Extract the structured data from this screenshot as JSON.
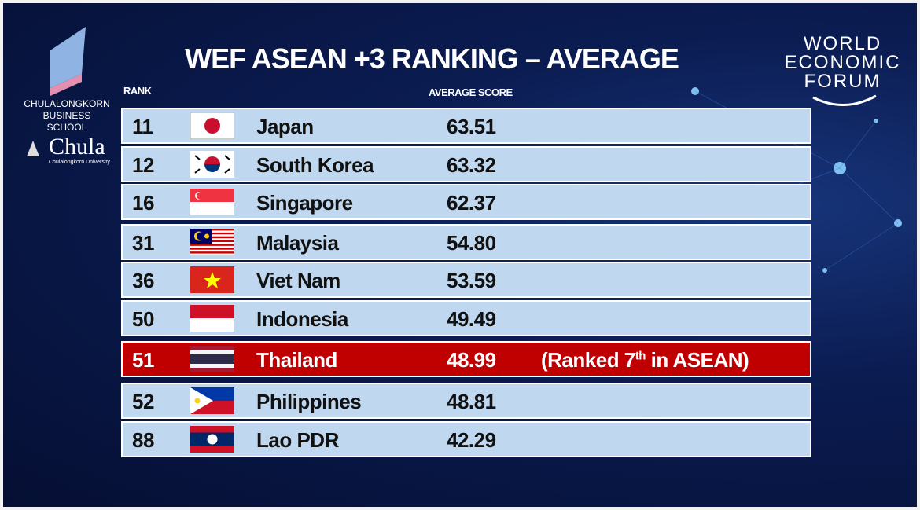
{
  "header": {
    "title": "WEF ASEAN +3 RANKING – AVERAGE"
  },
  "logos": {
    "school_line1": "CHULALONGKORN",
    "school_line2": "BUSINESS SCHOOL",
    "chula": "Chula",
    "chula_sub": "Chulalongkorn University",
    "wef": [
      "WORLD",
      "ECONOMIC",
      "FORUM"
    ]
  },
  "table": {
    "columns": {
      "rank": "RANK",
      "score": "AVERAGE SCORE"
    },
    "rows": [
      {
        "rank": 11,
        "country": "Japan",
        "score": "63.51"
      },
      {
        "rank": 12,
        "country": "South Korea",
        "score": "63.32"
      },
      {
        "rank": 16,
        "country": "Singapore",
        "score": "62.37"
      },
      {
        "rank": 31,
        "country": "Malaysia",
        "score": "54.80"
      },
      {
        "rank": 36,
        "country": "Viet Nam",
        "score": "53.59"
      },
      {
        "rank": 50,
        "country": "Indonesia",
        "score": "49.49"
      },
      {
        "rank": 51,
        "country": "Thailand",
        "score": "48.99",
        "note": {
          "prefix": "(Ranked 7",
          "sup": "th",
          "suffix": " in ASEAN)"
        }
      },
      {
        "rank": 52,
        "country": "Philippines",
        "score": "48.81"
      },
      {
        "rank": 88,
        "country": "Lao PDR",
        "score": "42.29"
      }
    ]
  }
}
